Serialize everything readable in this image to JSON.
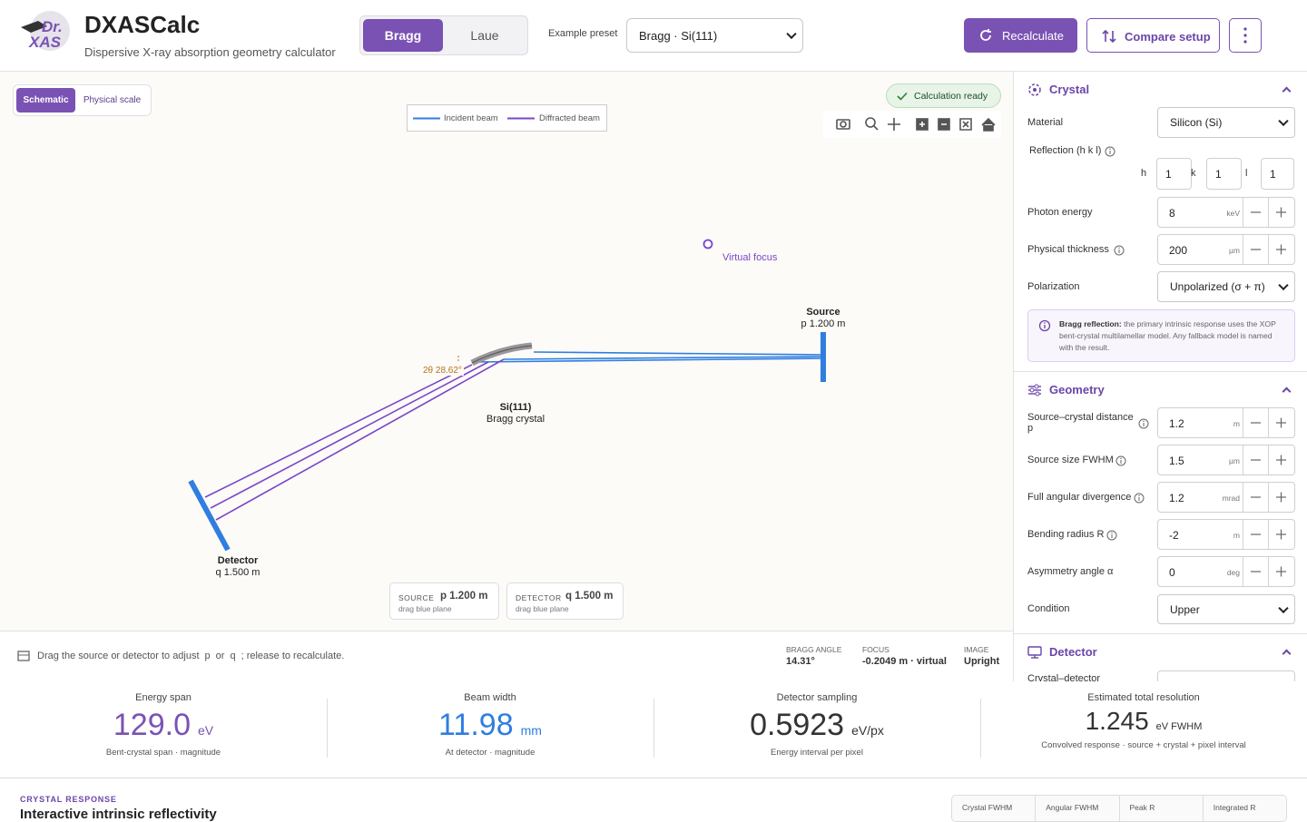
{
  "header": {
    "logo": {
      "line1": "Dr.",
      "line2": "XAS"
    },
    "title": "DXASCalc",
    "subtitle": "Dispersive X-ray absorption geometry calculator",
    "modes": [
      "Bragg",
      "Laue"
    ],
    "preset_label": "Example preset",
    "preset": "Bragg · Si(111)",
    "buttons": [
      "Recalculate",
      "Compare setup"
    ]
  },
  "canvas": {
    "views": [
      "Schematic",
      "Physical scale"
    ],
    "status": "Calculation ready",
    "legend": [
      "Incident beam",
      "Diffracted beam"
    ],
    "labels": {
      "virtual_focus": "Virtual focus",
      "source": "Source",
      "source_p": "p 1.200 m",
      "crystal": "Si(111)",
      "crystal_type": "Bragg crystal",
      "angle": "2θ 28.62°",
      "detector": "Detector",
      "detector_q": "q 1.500 m"
    },
    "chips": [
      {
        "label": "SOURCE",
        "value": "p 1.200 m",
        "hint": "drag blue plane"
      },
      {
        "label": "DETECTOR",
        "value": "q 1.500 m",
        "hint": "drag blue plane"
      }
    ]
  },
  "hint_bar": {
    "parts": [
      "Drag the source or detector to adjust",
      "p",
      "or",
      "q",
      "; release to recalculate."
    ],
    "stats": [
      {
        "label": "BRAGG ANGLE",
        "value": "14.31°"
      },
      {
        "label": "FOCUS",
        "value": "-0.2049 m · virtual"
      },
      {
        "label": "IMAGE",
        "value": "Upright"
      }
    ]
  },
  "panel": {
    "crystal": {
      "title": "Crystal",
      "material_label": "Material",
      "material": "Silicon (Si)",
      "reflection_label": "Reflection (h k l)",
      "hkl": [
        {
          "label": "h",
          "value": "1"
        },
        {
          "label": "k",
          "value": "1"
        },
        {
          "label": "l",
          "value": "1"
        }
      ],
      "fields": [
        {
          "label": "Photon energy",
          "value": "8",
          "unit": "keV"
        },
        {
          "label": "Physical thickness",
          "value": "200",
          "unit": "µm"
        }
      ],
      "polarization_label": "Polarization",
      "polarization": "Unpolarized (σ + π)",
      "note_title": "Bragg reflection:",
      "note": "the primary intrinsic response uses the XOP bent-crystal multilamellar model. Any fallback model is named with the result."
    },
    "geometry": {
      "title": "Geometry",
      "fields": [
        {
          "label": "Source–crystal distance p",
          "value": "1.2",
          "unit": "m"
        },
        {
          "label": "Source size FWHM",
          "value": "1.5",
          "unit": "µm"
        },
        {
          "label": "Full angular divergence",
          "value": "1.2",
          "unit": "mrad"
        },
        {
          "label": "Bending radius R",
          "value": "-2",
          "unit": "m"
        },
        {
          "label": "Asymmetry angle α",
          "value": "0",
          "unit": "deg"
        }
      ],
      "condition_label": "Condition",
      "condition": "Upper"
    },
    "detector": {
      "title": "Detector",
      "first_field": "Crystal–detector"
    }
  },
  "metrics": [
    {
      "label": "Energy span",
      "value": "129.0",
      "unit": "eV",
      "caption": "Bent-crystal span · magnitude"
    },
    {
      "label": "Beam width",
      "value": "11.98",
      "unit": "mm",
      "caption": "At detector · magnitude"
    },
    {
      "label": "Detector sampling",
      "value": "0.5923",
      "unit": "eV/px",
      "caption": "Energy interval per pixel"
    },
    {
      "label": "Estimated total resolution",
      "value": "1.245",
      "unit": "eV FWHM",
      "caption": "Convolved response · source + crystal + pixel interval"
    }
  ],
  "response": {
    "eyebrow": "CRYSTAL RESPONSE",
    "title": "Interactive intrinsic reflectivity",
    "columns": [
      "Crystal FWHM",
      "Angular FWHM",
      "Peak R",
      "Integrated R"
    ]
  }
}
